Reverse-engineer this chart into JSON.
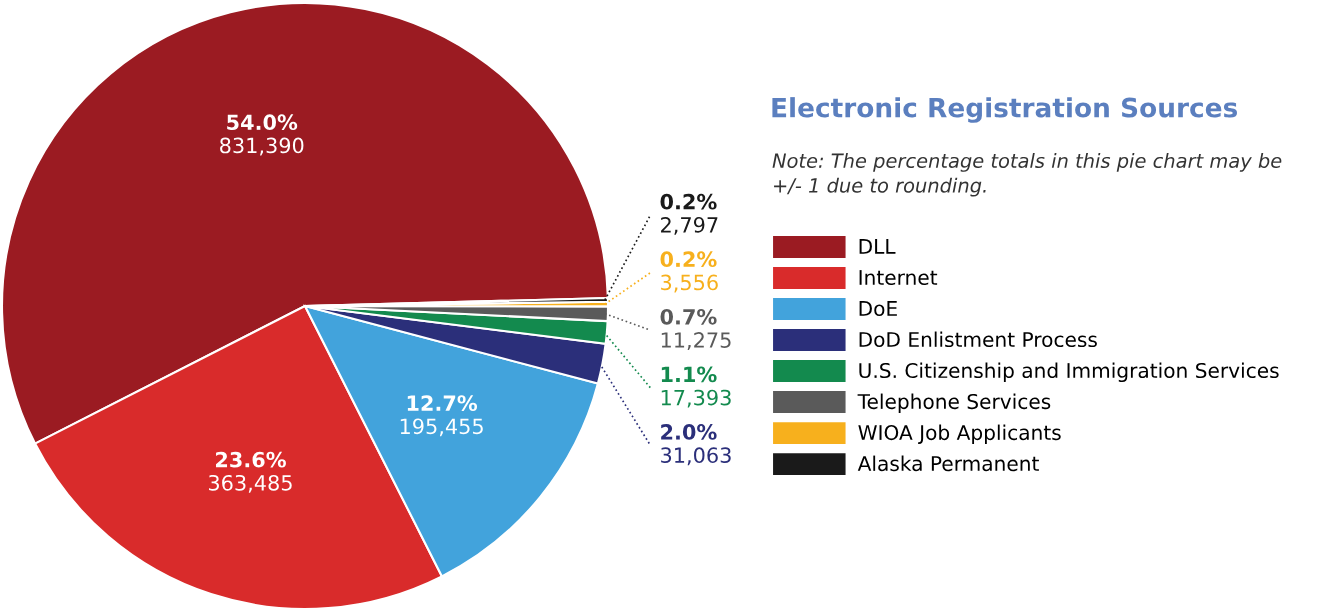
{
  "chart_data": {
    "type": "pie",
    "legend_title": "Electronic Registration Sources",
    "annotations": [
      "Note: The percentage totals in this pie chart may be +/- 1 due to rounding."
    ],
    "categories": [
      "DLL",
      "Internet",
      "DoE",
      "DoD Enlistment Process",
      "U.S. Citizenship and Immigration Services",
      "Telephone Services",
      "WIOA Job Applicants",
      "Alaska Permanent"
    ],
    "values": [
      831390,
      363485,
      195455,
      31063,
      17393,
      11275,
      3556,
      2797
    ],
    "value_labels": [
      "54.0%\n831,390",
      "23.6%\n363,485",
      "12.7%\n195,455",
      "2.0%\n31,063",
      "1.1%\n17,393",
      "0.7%\n11,275",
      "0.2%\n3,556",
      "0.2%\n2,797"
    ],
    "colors": [
      "#9b1b22",
      "#d92b2b",
      "#42a3dc",
      "#2b2f7a",
      "#138a4e",
      "#5a5a5a",
      "#f7b01d",
      "#1a1a1a"
    ],
    "legend": "right"
  }
}
